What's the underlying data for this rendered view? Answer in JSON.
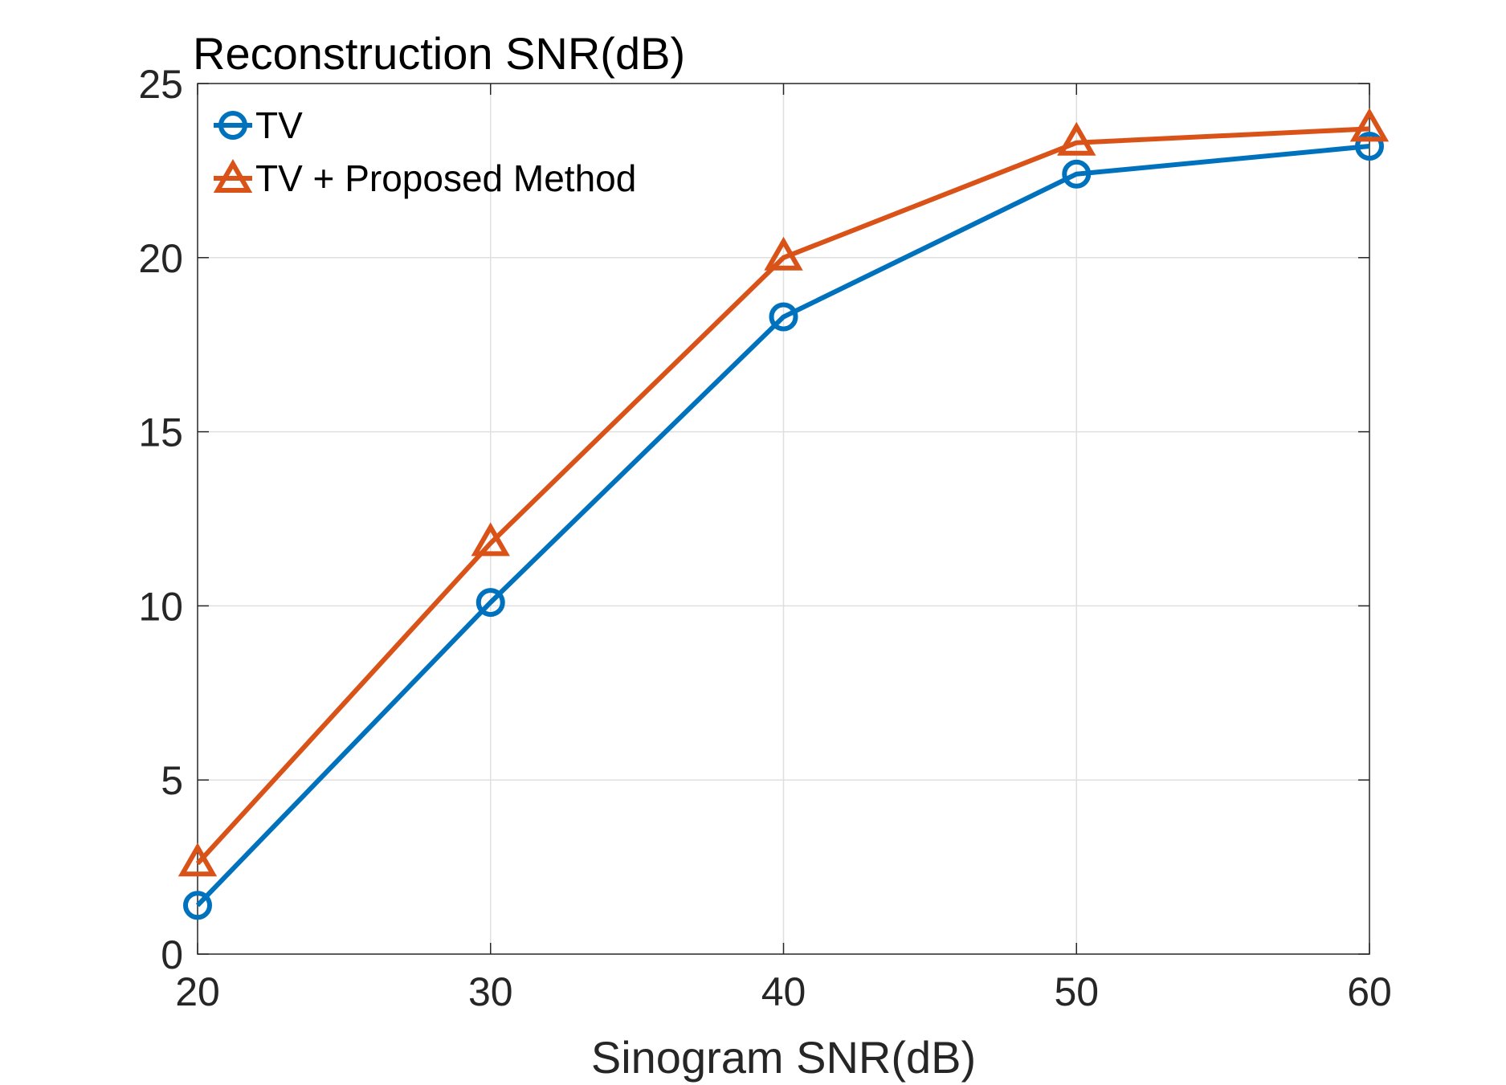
{
  "chart_data": {
    "type": "line",
    "title": "Reconstruction SNR(dB)",
    "xlabel": "Sinogram SNR(dB)",
    "ylabel": "",
    "x": [
      20,
      30,
      40,
      50,
      60
    ],
    "xlim": [
      20,
      60
    ],
    "ylim": [
      0,
      25
    ],
    "xticks": [
      "20",
      "30",
      "40",
      "50",
      "60"
    ],
    "yticks": [
      "0",
      "5",
      "10",
      "15",
      "20",
      "25"
    ],
    "grid": true,
    "legend_position": "top-left",
    "series": [
      {
        "name": "TV",
        "values": [
          1.4,
          10.1,
          18.3,
          22.4,
          23.2
        ],
        "color": "#0072bd",
        "marker": "circle"
      },
      {
        "name": "TV + Proposed Method",
        "values": [
          2.6,
          11.8,
          20.0,
          23.3,
          23.7
        ],
        "color": "#d95319",
        "marker": "triangle"
      }
    ]
  }
}
